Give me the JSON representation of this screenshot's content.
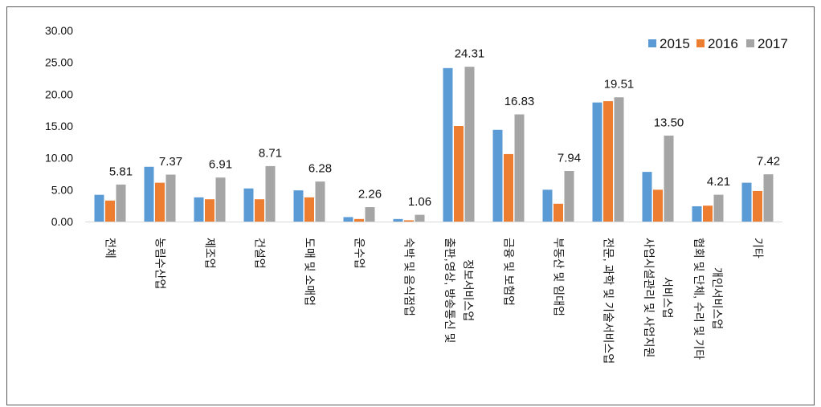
{
  "chart_data": {
    "type": "bar",
    "categories": [
      "전체",
      "농림수산업",
      "제조업",
      "건설업",
      "도매 및 소매업",
      "운수업",
      "숙박 및 음식점업",
      "출판,영상, 방송통신 및\n정보서비스업",
      "금융 및 보험업",
      "부동산 및 임대업",
      "전문, 과학 및 기술서비스업",
      "사업시설관리 및 사업지원\n서비스업",
      "협회 및 단체, 수리 및 기타\n개인서비스업",
      "기타"
    ],
    "series": [
      {
        "name": "2015",
        "color": "#5B9BD5",
        "values": [
          4.2,
          8.6,
          3.8,
          5.2,
          4.9,
          0.7,
          0.4,
          24.1,
          14.4,
          5.0,
          18.7,
          7.8,
          2.4,
          6.1
        ]
      },
      {
        "name": "2016",
        "color": "#ED7D31",
        "values": [
          3.3,
          6.1,
          3.5,
          3.5,
          3.8,
          0.4,
          0.2,
          15.0,
          10.6,
          2.8,
          18.9,
          5.0,
          2.5,
          4.8
        ]
      },
      {
        "name": "2017",
        "color": "#A5A5A5",
        "values": [
          5.81,
          7.37,
          6.91,
          8.71,
          6.28,
          2.26,
          1.06,
          24.31,
          16.83,
          7.94,
          19.51,
          13.5,
          4.21,
          7.42
        ],
        "data_labels": [
          "5.81",
          "7.37",
          "6.91",
          "8.71",
          "6.28",
          "2.26",
          "1.06",
          "24.31",
          "16.83",
          "7.94",
          "19.51",
          "13.50",
          "4.21",
          "7.42"
        ]
      }
    ],
    "ylim": [
      0,
      30
    ],
    "y_ticks": [
      "0.00",
      "5.00",
      "10.00",
      "15.00",
      "20.00",
      "25.00",
      "30.00"
    ],
    "grid": false,
    "legend_position": "top-right"
  }
}
